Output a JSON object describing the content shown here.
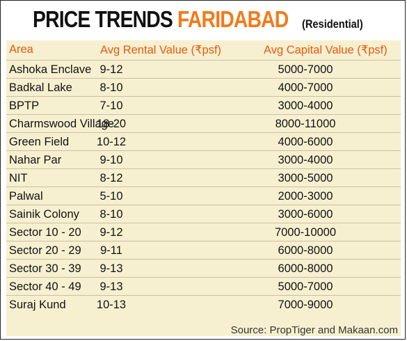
{
  "title": {
    "main": "PRICE TRENDS",
    "accent": "FARIDABAD",
    "sub": "(Residential)"
  },
  "table": {
    "headers": [
      "Area",
      "Avg Rental Value (₹psf)",
      "Avg Capital Value (₹psf)"
    ],
    "rows": [
      [
        "Ashoka Enclave",
        "9-12",
        "5000-7000"
      ],
      [
        "Badkal Lake",
        "8-10",
        "4000-7000"
      ],
      [
        "BPTP",
        "7-10",
        "3000-4000"
      ],
      [
        "Charmswood Village",
        "18-20",
        "8000-11000"
      ],
      [
        "Green Field",
        "10-12",
        "4000-6000"
      ],
      [
        "Nahar Par",
        "9-10",
        "3000-4000"
      ],
      [
        "NIT",
        "8-12",
        "3000-5000"
      ],
      [
        "Palwal",
        "5-10",
        "2000-3000"
      ],
      [
        "Sainik Colony",
        "8-10",
        "3000-6000"
      ],
      [
        "Sector 10 - 20",
        "9-12",
        "7000-10000"
      ],
      [
        "Sector 20 - 29",
        "9-11",
        "6000-8000"
      ],
      [
        "Sector 30 - 39",
        "9-13",
        "6000-8000"
      ],
      [
        "Sector 40 - 49",
        "9-13",
        "5000-7000"
      ],
      [
        "Suraj Kund",
        "10-13",
        "7000-9000"
      ]
    ]
  },
  "source": "Source: PropTiger and Makaan.com",
  "colors": {
    "accent": "#f27a1a",
    "panel": "#f7f0d0"
  }
}
